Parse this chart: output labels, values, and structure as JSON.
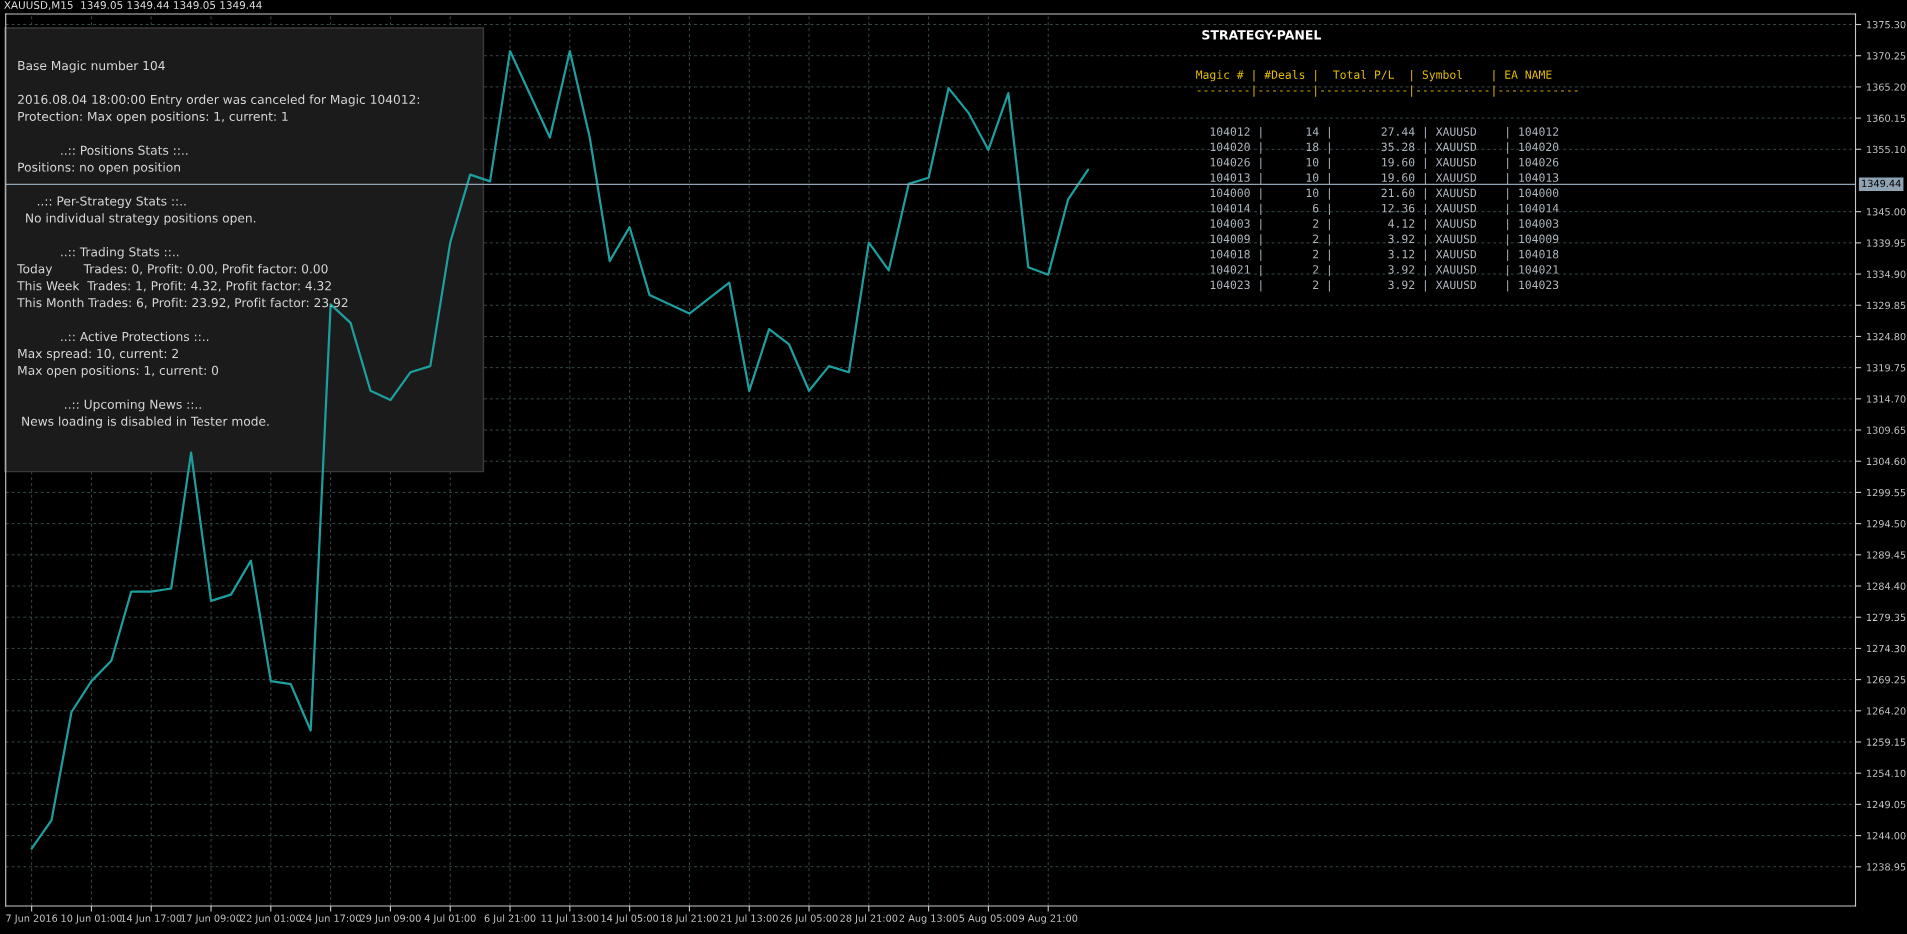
{
  "chart_data": {
    "type": "line",
    "title": "XAUUSD,M15  1349.05 1349.44 1349.05 1349.44",
    "categories": [
      "7 Jun 2016",
      null,
      null,
      "10 Jun 01:00",
      null,
      null,
      "14 Jun 17:00",
      null,
      null,
      "17 Jun 09:00",
      null,
      null,
      "22 Jun 01:00",
      null,
      null,
      "24 Jun 17:00",
      null,
      null,
      "29 Jun 09:00",
      null,
      null,
      "4 Jul 01:00",
      null,
      null,
      "6 Jul 21:00",
      null,
      null,
      "11 Jul 13:00",
      null,
      null,
      "14 Jul 05:00",
      null,
      null,
      "18 Jul 21:00",
      null,
      null,
      "21 Jul 13:00",
      null,
      null,
      "26 Jul 05:00",
      null,
      null,
      "28 Jul 21:00",
      null,
      null,
      "2 Aug 13:00",
      null,
      null,
      "5 Aug 05:00",
      null,
      null,
      "9 Aug 21:00",
      null,
      null,
      null,
      null,
      null,
      null,
      null,
      null,
      null,
      null,
      null,
      null,
      null,
      null,
      null,
      null,
      null,
      null,
      null,
      null,
      null,
      null,
      null,
      null,
      null,
      null,
      null,
      null,
      null,
      null,
      null,
      null,
      null,
      null,
      null,
      null,
      null,
      null,
      null,
      null
    ],
    "series": [
      {
        "color": "#1e9e9e",
        "values": [
          1241.9,
          1246.5,
          1264,
          1269,
          1272.3,
          1283.5,
          1283.5,
          1284,
          1306,
          1282,
          1283,
          1288.5,
          1269,
          1268.5,
          1261,
          1330,
          1327,
          1316,
          1314.5,
          1319,
          1320,
          1340,
          1351,
          1349.9,
          1371,
          1364,
          1357,
          1371,
          1357,
          1337,
          1342.5,
          1331.5,
          1330,
          1328.5,
          1331,
          1333.5,
          1316,
          1326,
          1323.5,
          1316,
          1320,
          1319,
          1340,
          1335.5,
          1349.5,
          1350.5,
          1365,
          1361,
          1355,
          1364.2,
          1336,
          1334.8,
          1347,
          1351.8,
          null,
          null,
          null,
          null,
          null,
          null,
          null,
          null,
          null,
          null,
          null,
          null,
          null,
          null,
          null,
          null,
          null,
          null,
          null,
          null,
          null,
          null,
          null,
          null,
          null,
          null,
          null,
          null,
          null,
          null,
          null,
          null,
          null,
          null,
          null,
          null,
          null,
          null
        ]
      }
    ],
    "ylim": [
      1232.6,
      1377.0
    ],
    "yticks": [
      {
        "value": 1238.95,
        "label": "1238.95"
      },
      {
        "value": 1244,
        "label": "1244.00"
      },
      {
        "value": 1249.05,
        "label": "1249.05"
      },
      {
        "value": 1254.1,
        "label": "1254.10"
      },
      {
        "value": 1259.15,
        "label": "1259.15"
      },
      {
        "value": 1264.2,
        "label": "1264.20"
      },
      {
        "value": 1269.25,
        "label": "1269.25"
      },
      {
        "value": 1274.3,
        "label": "1274.30"
      },
      {
        "value": 1279.35,
        "label": "1279.35"
      },
      {
        "value": 1284.4,
        "label": "1284.40"
      },
      {
        "value": 1289.45,
        "label": "1289.45"
      },
      {
        "value": 1294.5,
        "label": "1294.50"
      },
      {
        "value": 1299.55,
        "label": "1299.55"
      },
      {
        "value": 1304.6,
        "label": "1304.60"
      },
      {
        "value": 1309.65,
        "label": "1309.65"
      },
      {
        "value": 1314.7,
        "label": "1314.70"
      },
      {
        "value": 1319.75,
        "label": "1319.75"
      },
      {
        "value": 1324.8,
        "label": "1324.80"
      },
      {
        "value": 1329.85,
        "label": "1329.85"
      },
      {
        "value": 1334.9,
        "label": "1334.90"
      },
      {
        "value": 1339.95,
        "label": "1339.95"
      },
      {
        "value": 1345,
        "label": "1345.00"
      },
      {
        "value": 1355.1,
        "label": "1355.10"
      },
      {
        "value": 1360.15,
        "label": "1360.15"
      },
      {
        "value": 1365.2,
        "label": "1365.20"
      },
      {
        "value": 1370.25,
        "label": "1370.25"
      },
      {
        "value": 1375.3,
        "label": "1375.30"
      }
    ],
    "ref_lines": [
      {
        "axis": "y",
        "value": 1349.44,
        "label": "1349.44",
        "color": "#8fa3b3"
      }
    ],
    "grid": true,
    "annotations": [
      "Base Magic number 104\n\n2016.08.04 18:00:00 Entry order was canceled for Magic 104012:\nProtection: Max open positions: 1, current: 1\n\n           ..:: Positions Stats ::..\nPositions: no open position\n\n     ..:: Per-Strategy Stats ::..\n  No individual strategy positions open.\n\n           ..:: Trading Stats ::..\nToday        Trades: 0, Profit: 0.00, Profit factor: 0.00\nThis Week  Trades: 1, Profit: 4.32, Profit factor: 4.32\nThis Month Trades: 6, Profit: 23.92, Profit factor: 23.92\n\n           ..:: Active Protections ::..\nMax spread: 10, current: 2\nMax open positions: 1, current: 0\n\n            ..:: Upcoming News ::..\n News loading is disabled in Tester mode.",
      "STRATEGY-PANEL",
      "Magic # | #Deals |  Total P/L  | Symbol    | EA NAME\n--------|--------|-------------|-----------|------------",
      "  104012 |      14 |       27.44 | XAUUSD    | 104012\n  104020 |      18 |       35.28 | XAUUSD    | 104020\n  104026 |      10 |       19.60 | XAUUSD    | 104026\n  104013 |      10 |       19.60 | XAUUSD    | 104013\n  104000 |      10 |       21.60 | XAUUSD    | 104000\n  104014 |       6 |       12.36 | XAUUSD    | 104014\n  104003 |       2 |        4.12 | XAUUSD    | 104003\n  104009 |       2 |        3.92 | XAUUSD    | 104009\n  104018 |       2 |        3.12 | XAUUSD    | 104018\n  104021 |       2 |        3.92 | XAUUSD    | 104021\n  104023 |       2 |        3.92 | XAUUSD    | 104023"
    ]
  }
}
